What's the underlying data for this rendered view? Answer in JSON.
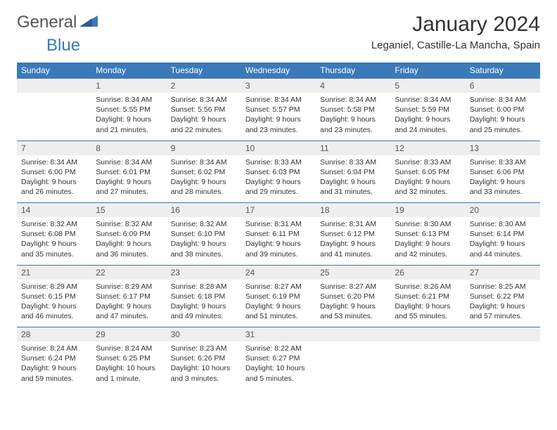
{
  "brand": {
    "general": "General",
    "blue": "Blue"
  },
  "title": "January 2024",
  "location": "Leganiel, Castille-La Mancha, Spain",
  "colors": {
    "header_bg": "#3a7ab8",
    "daynum_bg": "#eeeeee",
    "border": "#3a7ab8"
  },
  "weekdays": [
    "Sunday",
    "Monday",
    "Tuesday",
    "Wednesday",
    "Thursday",
    "Friday",
    "Saturday"
  ],
  "weeks": [
    {
      "nums": [
        "",
        "1",
        "2",
        "3",
        "4",
        "5",
        "6"
      ],
      "cells": [
        "",
        "Sunrise: 8:34 AM\nSunset: 5:55 PM\nDaylight: 9 hours and 21 minutes.",
        "Sunrise: 8:34 AM\nSunset: 5:56 PM\nDaylight: 9 hours and 22 minutes.",
        "Sunrise: 8:34 AM\nSunset: 5:57 PM\nDaylight: 9 hours and 23 minutes.",
        "Sunrise: 8:34 AM\nSunset: 5:58 PM\nDaylight: 9 hours and 23 minutes.",
        "Sunrise: 8:34 AM\nSunset: 5:59 PM\nDaylight: 9 hours and 24 minutes.",
        "Sunrise: 8:34 AM\nSunset: 6:00 PM\nDaylight: 9 hours and 25 minutes."
      ]
    },
    {
      "nums": [
        "7",
        "8",
        "9",
        "10",
        "11",
        "12",
        "13"
      ],
      "cells": [
        "Sunrise: 8:34 AM\nSunset: 6:00 PM\nDaylight: 9 hours and 26 minutes.",
        "Sunrise: 8:34 AM\nSunset: 6:01 PM\nDaylight: 9 hours and 27 minutes.",
        "Sunrise: 8:34 AM\nSunset: 6:02 PM\nDaylight: 9 hours and 28 minutes.",
        "Sunrise: 8:33 AM\nSunset: 6:03 PM\nDaylight: 9 hours and 29 minutes.",
        "Sunrise: 8:33 AM\nSunset: 6:04 PM\nDaylight: 9 hours and 31 minutes.",
        "Sunrise: 8:33 AM\nSunset: 6:05 PM\nDaylight: 9 hours and 32 minutes.",
        "Sunrise: 8:33 AM\nSunset: 6:06 PM\nDaylight: 9 hours and 33 minutes."
      ]
    },
    {
      "nums": [
        "14",
        "15",
        "16",
        "17",
        "18",
        "19",
        "20"
      ],
      "cells": [
        "Sunrise: 8:32 AM\nSunset: 6:08 PM\nDaylight: 9 hours and 35 minutes.",
        "Sunrise: 8:32 AM\nSunset: 6:09 PM\nDaylight: 9 hours and 36 minutes.",
        "Sunrise: 8:32 AM\nSunset: 6:10 PM\nDaylight: 9 hours and 38 minutes.",
        "Sunrise: 8:31 AM\nSunset: 6:11 PM\nDaylight: 9 hours and 39 minutes.",
        "Sunrise: 8:31 AM\nSunset: 6:12 PM\nDaylight: 9 hours and 41 minutes.",
        "Sunrise: 8:30 AM\nSunset: 6:13 PM\nDaylight: 9 hours and 42 minutes.",
        "Sunrise: 8:30 AM\nSunset: 6:14 PM\nDaylight: 9 hours and 44 minutes."
      ]
    },
    {
      "nums": [
        "21",
        "22",
        "23",
        "24",
        "25",
        "26",
        "27"
      ],
      "cells": [
        "Sunrise: 8:29 AM\nSunset: 6:15 PM\nDaylight: 9 hours and 46 minutes.",
        "Sunrise: 8:29 AM\nSunset: 6:17 PM\nDaylight: 9 hours and 47 minutes.",
        "Sunrise: 8:28 AM\nSunset: 6:18 PM\nDaylight: 9 hours and 49 minutes.",
        "Sunrise: 8:27 AM\nSunset: 6:19 PM\nDaylight: 9 hours and 51 minutes.",
        "Sunrise: 8:27 AM\nSunset: 6:20 PM\nDaylight: 9 hours and 53 minutes.",
        "Sunrise: 8:26 AM\nSunset: 6:21 PM\nDaylight: 9 hours and 55 minutes.",
        "Sunrise: 8:25 AM\nSunset: 6:22 PM\nDaylight: 9 hours and 57 minutes."
      ]
    },
    {
      "nums": [
        "28",
        "29",
        "30",
        "31",
        "",
        "",
        ""
      ],
      "cells": [
        "Sunrise: 8:24 AM\nSunset: 6:24 PM\nDaylight: 9 hours and 59 minutes.",
        "Sunrise: 8:24 AM\nSunset: 6:25 PM\nDaylight: 10 hours and 1 minute.",
        "Sunrise: 8:23 AM\nSunset: 6:26 PM\nDaylight: 10 hours and 3 minutes.",
        "Sunrise: 8:22 AM\nSunset: 6:27 PM\nDaylight: 10 hours and 5 minutes.",
        "",
        "",
        ""
      ]
    }
  ]
}
